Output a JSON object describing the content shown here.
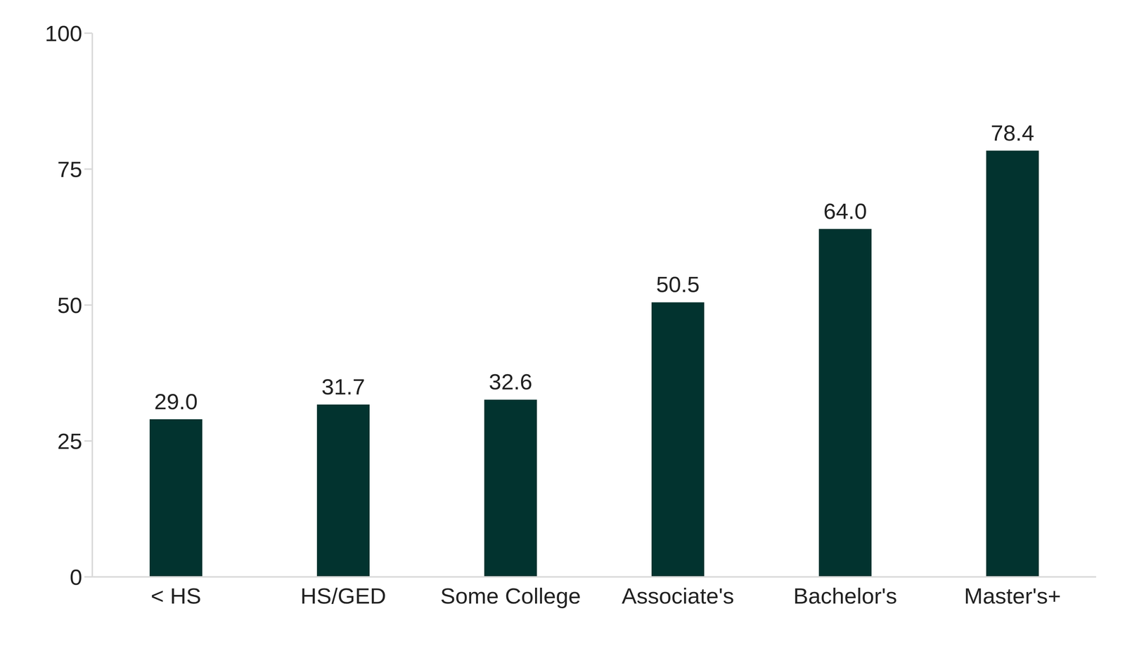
{
  "chart_data": {
    "type": "bar",
    "categories": [
      "< HS",
      "HS/GED",
      "Some College",
      "Associate's",
      "Bachelor's",
      "Master's+"
    ],
    "values": [
      29.0,
      31.7,
      32.6,
      50.5,
      64.0,
      78.4
    ],
    "value_labels": [
      "29.0",
      "31.7",
      "32.6",
      "50.5",
      "64.0",
      "78.4"
    ],
    "color": "#02332f",
    "ylim": [
      0,
      100
    ],
    "yticks": [
      0,
      25,
      50,
      75,
      100
    ],
    "grid": false,
    "data_labels": true
  }
}
